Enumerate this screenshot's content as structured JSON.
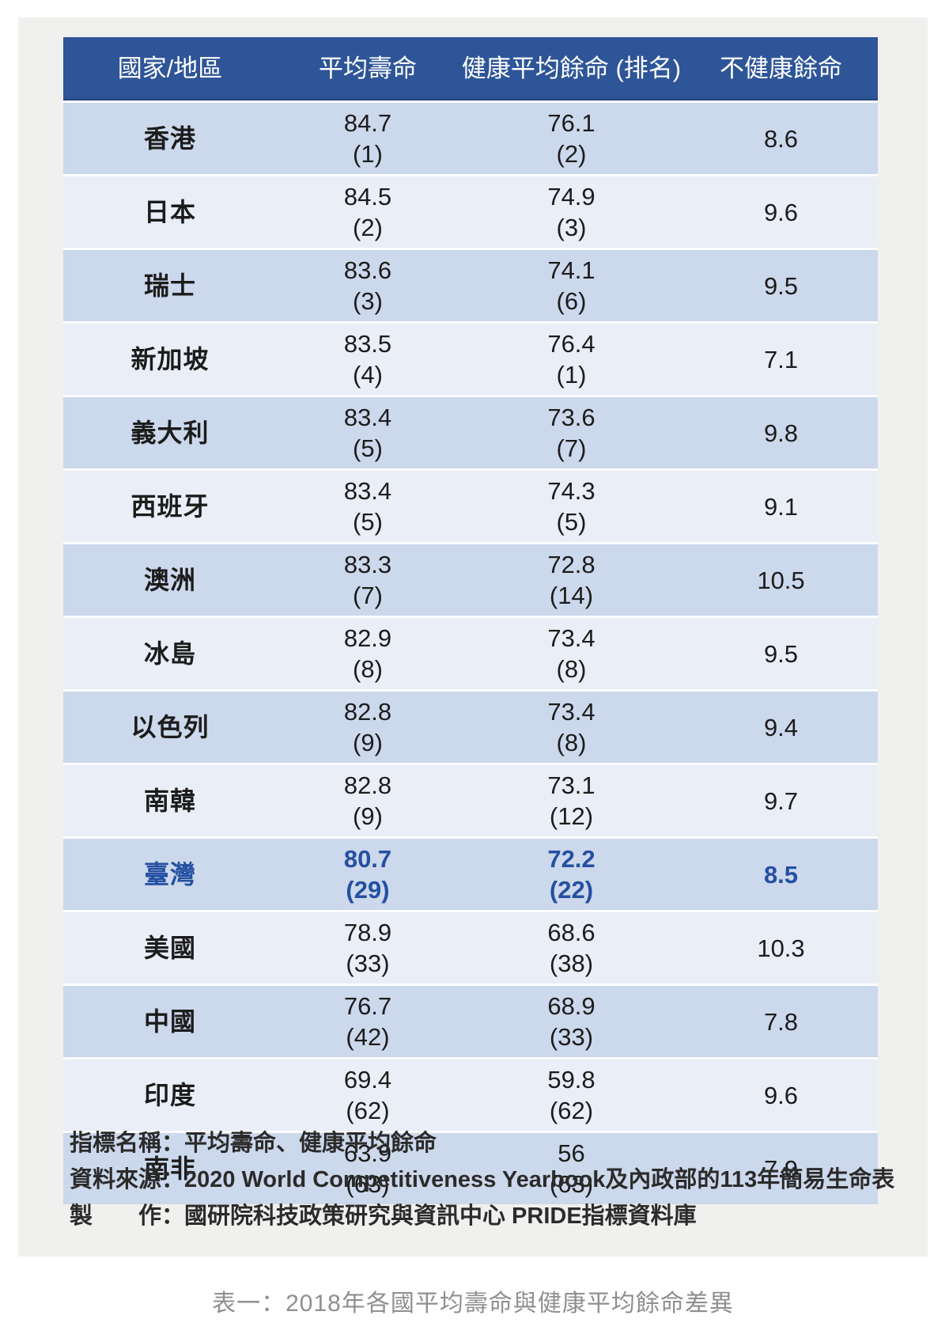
{
  "chart_data": {
    "type": "table",
    "title": "表一：2018年各國平均壽命與健康平均餘命差異",
    "columns": [
      {
        "key": "region",
        "label": "國家/地區"
      },
      {
        "key": "life",
        "label": "平均壽命"
      },
      {
        "key": "healthy",
        "label": "健康平均餘命",
        "sublabel": "(排名)"
      },
      {
        "key": "unhealthy",
        "label": "不健康餘命"
      }
    ],
    "rows": [
      {
        "region": "香港",
        "life": "84.7",
        "life_rank": "(1)",
        "healthy": "76.1",
        "healthy_rank": "(2)",
        "unhealthy": "8.6",
        "highlight": false
      },
      {
        "region": "日本",
        "life": "84.5",
        "life_rank": "(2)",
        "healthy": "74.9",
        "healthy_rank": "(3)",
        "unhealthy": "9.6",
        "highlight": false
      },
      {
        "region": "瑞士",
        "life": "83.6",
        "life_rank": "(3)",
        "healthy": "74.1",
        "healthy_rank": "(6)",
        "unhealthy": "9.5",
        "highlight": false
      },
      {
        "region": "新加坡",
        "life": "83.5",
        "life_rank": "(4)",
        "healthy": "76.4",
        "healthy_rank": "(1)",
        "unhealthy": "7.1",
        "highlight": false
      },
      {
        "region": "義大利",
        "life": "83.4",
        "life_rank": "(5)",
        "healthy": "73.6",
        "healthy_rank": "(7)",
        "unhealthy": "9.8",
        "highlight": false
      },
      {
        "region": "西班牙",
        "life": "83.4",
        "life_rank": "(5)",
        "healthy": "74.3",
        "healthy_rank": "(5)",
        "unhealthy": "9.1",
        "highlight": false
      },
      {
        "region": "澳洲",
        "life": "83.3",
        "life_rank": "(7)",
        "healthy": "72.8",
        "healthy_rank": "(14)",
        "unhealthy": "10.5",
        "highlight": false
      },
      {
        "region": "冰島",
        "life": "82.9",
        "life_rank": "(8)",
        "healthy": "73.4",
        "healthy_rank": "(8)",
        "unhealthy": "9.5",
        "highlight": false
      },
      {
        "region": "以色列",
        "life": "82.8",
        "life_rank": "(9)",
        "healthy": "73.4",
        "healthy_rank": "(8)",
        "unhealthy": "9.4",
        "highlight": false
      },
      {
        "region": "南韓",
        "life": "82.8",
        "life_rank": "(9)",
        "healthy": "73.1",
        "healthy_rank": "(12)",
        "unhealthy": "9.7",
        "highlight": false
      },
      {
        "region": "臺灣",
        "life": "80.7",
        "life_rank": "(29)",
        "healthy": "72.2",
        "healthy_rank": "(22)",
        "unhealthy": "8.5",
        "highlight": true
      },
      {
        "region": "美國",
        "life": "78.9",
        "life_rank": "(33)",
        "healthy": "68.6",
        "healthy_rank": "(38)",
        "unhealthy": "10.3",
        "highlight": false
      },
      {
        "region": "中國",
        "life": "76.7",
        "life_rank": "(42)",
        "healthy": "68.9",
        "healthy_rank": "(33)",
        "unhealthy": "7.8",
        "highlight": false
      },
      {
        "region": "印度",
        "life": "69.4",
        "life_rank": "(62)",
        "healthy": "59.8",
        "healthy_rank": "(62)",
        "unhealthy": "9.6",
        "highlight": false
      },
      {
        "region": "南非",
        "life": "63.9",
        "life_rank": "(63)",
        "healthy": "56",
        "healthy_rank": "(63)",
        "unhealthy": "7.9",
        "highlight": false
      }
    ]
  },
  "notes": [
    "指標名稱：平均壽命、健康平均餘命",
    "資料來源：2020 World Competitiveness Yearbook及內政部的113年簡易生命表",
    "製　　作：國研院科技政策研究與資訊中心 PRIDE指標資料庫"
  ],
  "caption": "表一：2018年各國平均壽命與健康平均餘命差異",
  "colors": {
    "header_bg": "#2e5597",
    "header_edge": "#24457c",
    "row_dark": "#ccd8eb",
    "row_light": "#e9eef7",
    "row_gap": "#fbfcfe",
    "text_main": "#1c1c1c",
    "highlight_text": "#2450a2",
    "panel_bg": "#f0f0ef",
    "note_text": "#2b2b2b",
    "caption_text": "#8f8f8f"
  }
}
